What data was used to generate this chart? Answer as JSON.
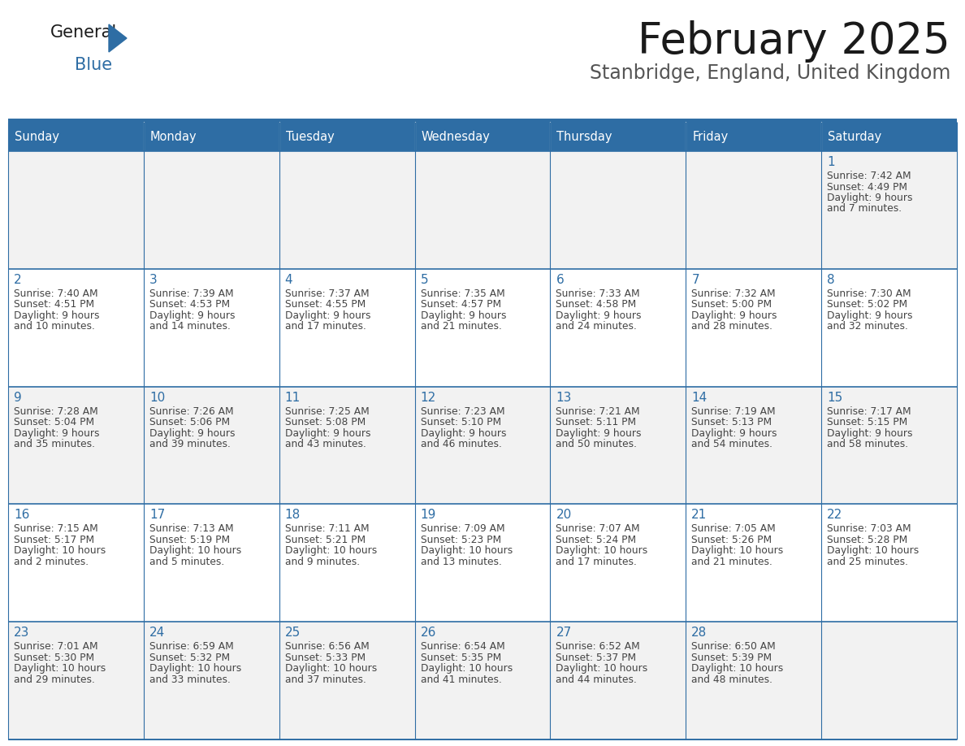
{
  "title": "February 2025",
  "subtitle": "Stanbridge, England, United Kingdom",
  "days_of_week": [
    "Sunday",
    "Monday",
    "Tuesday",
    "Wednesday",
    "Thursday",
    "Friday",
    "Saturday"
  ],
  "header_bg": "#2E6DA4",
  "header_text": "#FFFFFF",
  "cell_bg_light": "#F2F2F2",
  "cell_bg_white": "#FFFFFF",
  "day_num_color": "#2E6DA4",
  "text_color": "#444444",
  "line_color": "#2E6DA4",
  "logo_general_color": "#1a1a1a",
  "logo_blue_color": "#2E6DA4",
  "weeks": [
    [
      null,
      null,
      null,
      null,
      null,
      null,
      {
        "day": 1,
        "sunrise": "7:42 AM",
        "sunset": "4:49 PM",
        "daylight": "9 hours",
        "daylight2": "and 7 minutes."
      }
    ],
    [
      {
        "day": 2,
        "sunrise": "7:40 AM",
        "sunset": "4:51 PM",
        "daylight": "9 hours",
        "daylight2": "and 10 minutes."
      },
      {
        "day": 3,
        "sunrise": "7:39 AM",
        "sunset": "4:53 PM",
        "daylight": "9 hours",
        "daylight2": "and 14 minutes."
      },
      {
        "day": 4,
        "sunrise": "7:37 AM",
        "sunset": "4:55 PM",
        "daylight": "9 hours",
        "daylight2": "and 17 minutes."
      },
      {
        "day": 5,
        "sunrise": "7:35 AM",
        "sunset": "4:57 PM",
        "daylight": "9 hours",
        "daylight2": "and 21 minutes."
      },
      {
        "day": 6,
        "sunrise": "7:33 AM",
        "sunset": "4:58 PM",
        "daylight": "9 hours",
        "daylight2": "and 24 minutes."
      },
      {
        "day": 7,
        "sunrise": "7:32 AM",
        "sunset": "5:00 PM",
        "daylight": "9 hours",
        "daylight2": "and 28 minutes."
      },
      {
        "day": 8,
        "sunrise": "7:30 AM",
        "sunset": "5:02 PM",
        "daylight": "9 hours",
        "daylight2": "and 32 minutes."
      }
    ],
    [
      {
        "day": 9,
        "sunrise": "7:28 AM",
        "sunset": "5:04 PM",
        "daylight": "9 hours",
        "daylight2": "and 35 minutes."
      },
      {
        "day": 10,
        "sunrise": "7:26 AM",
        "sunset": "5:06 PM",
        "daylight": "9 hours",
        "daylight2": "and 39 minutes."
      },
      {
        "day": 11,
        "sunrise": "7:25 AM",
        "sunset": "5:08 PM",
        "daylight": "9 hours",
        "daylight2": "and 43 minutes."
      },
      {
        "day": 12,
        "sunrise": "7:23 AM",
        "sunset": "5:10 PM",
        "daylight": "9 hours",
        "daylight2": "and 46 minutes."
      },
      {
        "day": 13,
        "sunrise": "7:21 AM",
        "sunset": "5:11 PM",
        "daylight": "9 hours",
        "daylight2": "and 50 minutes."
      },
      {
        "day": 14,
        "sunrise": "7:19 AM",
        "sunset": "5:13 PM",
        "daylight": "9 hours",
        "daylight2": "and 54 minutes."
      },
      {
        "day": 15,
        "sunrise": "7:17 AM",
        "sunset": "5:15 PM",
        "daylight": "9 hours",
        "daylight2": "and 58 minutes."
      }
    ],
    [
      {
        "day": 16,
        "sunrise": "7:15 AM",
        "sunset": "5:17 PM",
        "daylight": "10 hours",
        "daylight2": "and 2 minutes."
      },
      {
        "day": 17,
        "sunrise": "7:13 AM",
        "sunset": "5:19 PM",
        "daylight": "10 hours",
        "daylight2": "and 5 minutes."
      },
      {
        "day": 18,
        "sunrise": "7:11 AM",
        "sunset": "5:21 PM",
        "daylight": "10 hours",
        "daylight2": "and 9 minutes."
      },
      {
        "day": 19,
        "sunrise": "7:09 AM",
        "sunset": "5:23 PM",
        "daylight": "10 hours",
        "daylight2": "and 13 minutes."
      },
      {
        "day": 20,
        "sunrise": "7:07 AM",
        "sunset": "5:24 PM",
        "daylight": "10 hours",
        "daylight2": "and 17 minutes."
      },
      {
        "day": 21,
        "sunrise": "7:05 AM",
        "sunset": "5:26 PM",
        "daylight": "10 hours",
        "daylight2": "and 21 minutes."
      },
      {
        "day": 22,
        "sunrise": "7:03 AM",
        "sunset": "5:28 PM",
        "daylight": "10 hours",
        "daylight2": "and 25 minutes."
      }
    ],
    [
      {
        "day": 23,
        "sunrise": "7:01 AM",
        "sunset": "5:30 PM",
        "daylight": "10 hours",
        "daylight2": "and 29 minutes."
      },
      {
        "day": 24,
        "sunrise": "6:59 AM",
        "sunset": "5:32 PM",
        "daylight": "10 hours",
        "daylight2": "and 33 minutes."
      },
      {
        "day": 25,
        "sunrise": "6:56 AM",
        "sunset": "5:33 PM",
        "daylight": "10 hours",
        "daylight2": "and 37 minutes."
      },
      {
        "day": 26,
        "sunrise": "6:54 AM",
        "sunset": "5:35 PM",
        "daylight": "10 hours",
        "daylight2": "and 41 minutes."
      },
      {
        "day": 27,
        "sunrise": "6:52 AM",
        "sunset": "5:37 PM",
        "daylight": "10 hours",
        "daylight2": "and 44 minutes."
      },
      {
        "day": 28,
        "sunrise": "6:50 AM",
        "sunset": "5:39 PM",
        "daylight": "10 hours",
        "daylight2": "and 48 minutes."
      },
      null
    ]
  ]
}
